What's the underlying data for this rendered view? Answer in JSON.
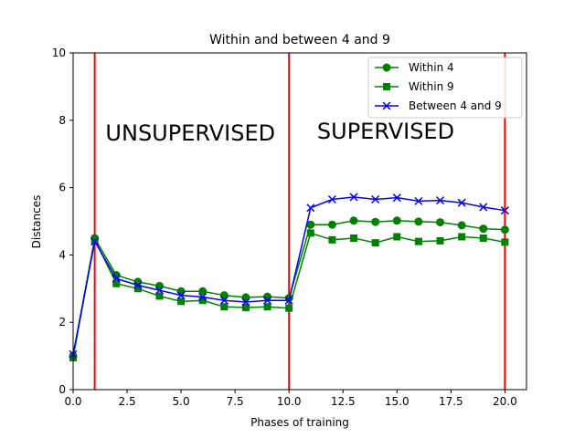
{
  "chart_data": {
    "type": "line",
    "title": "Within and between 4 and 9",
    "xlabel": "Phases of training",
    "ylabel": "Distances",
    "xlim": [
      0,
      21
    ],
    "ylim": [
      0,
      10
    ],
    "xticks": [
      0,
      2.5,
      5,
      7.5,
      10,
      12.5,
      15,
      17.5,
      20
    ],
    "xtick_labels": [
      "0.0",
      "2.5",
      "5.0",
      "7.5",
      "10.0",
      "12.5",
      "15.0",
      "17.5",
      "20.0"
    ],
    "yticks": [
      0,
      2,
      4,
      6,
      8,
      10
    ],
    "ytick_labels": [
      "0",
      "2",
      "4",
      "6",
      "8",
      "10"
    ],
    "grid": false,
    "legend_position": "top-right",
    "x": [
      0,
      1,
      2,
      3,
      4,
      5,
      6,
      7,
      8,
      9,
      10,
      11,
      12,
      13,
      14,
      15,
      16,
      17,
      18,
      19,
      20
    ],
    "series": [
      {
        "name": "Within 4",
        "color": "#008000",
        "marker": "circle",
        "values": [
          1.0,
          4.5,
          3.4,
          3.2,
          3.08,
          2.92,
          2.92,
          2.8,
          2.74,
          2.76,
          2.72,
          4.9,
          4.9,
          5.02,
          4.98,
          5.02,
          4.99,
          4.97,
          4.88,
          4.78,
          4.75
        ]
      },
      {
        "name": "Within 9",
        "color": "#008000",
        "marker": "square",
        "values": [
          0.95,
          4.45,
          3.15,
          3.0,
          2.78,
          2.62,
          2.65,
          2.46,
          2.44,
          2.46,
          2.42,
          4.65,
          4.45,
          4.5,
          4.36,
          4.54,
          4.4,
          4.42,
          4.54,
          4.5,
          4.38
        ]
      },
      {
        "name": "Between 4 and 9",
        "color": "#0000ff",
        "marker": "x",
        "values": [
          1.05,
          4.4,
          3.3,
          3.1,
          2.95,
          2.8,
          2.75,
          2.65,
          2.6,
          2.65,
          2.65,
          5.4,
          5.65,
          5.72,
          5.65,
          5.7,
          5.6,
          5.62,
          5.55,
          5.42,
          5.32
        ]
      }
    ],
    "vlines": [
      {
        "x": 1,
        "color": "#ff0000"
      },
      {
        "x": 10,
        "color": "#ff0000"
      },
      {
        "x": 20,
        "color": "#ff0000"
      }
    ],
    "annotations": [
      {
        "text": "UNSUPERVISED",
        "x": 1.5,
        "y": 7.4
      },
      {
        "text": "SUPERVISED",
        "x": 11.3,
        "y": 7.45
      }
    ]
  }
}
